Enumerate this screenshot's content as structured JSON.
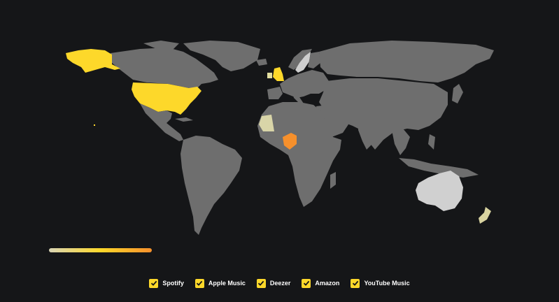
{
  "map": {
    "base_color": "#6e6e6e",
    "background": "#151618",
    "highlights": [
      {
        "country": "United States",
        "color": "#fdd82a"
      },
      {
        "country": "Alaska",
        "color": "#fdd82a"
      },
      {
        "country": "United Kingdom",
        "color": "#fdd82a"
      },
      {
        "country": "Ireland",
        "color": "#e3dea0"
      },
      {
        "country": "Sweden",
        "color": "#cfcfcf"
      },
      {
        "country": "Mauritania",
        "color": "#d9d5a8"
      },
      {
        "country": "Nigeria",
        "color": "#f6902c"
      },
      {
        "country": "Australia",
        "color": "#d0d0d0"
      },
      {
        "country": "New Zealand",
        "color": "#d8d3a0"
      }
    ]
  },
  "scale": {
    "gradient_start": "#d9d5b5",
    "gradient_mid": "#fdd82a",
    "gradient_end": "#f6902c"
  },
  "legend": {
    "check_color": "#fdd82a",
    "check_icon": "checkmark-icon",
    "items": [
      {
        "label": "Spotify",
        "checked": true
      },
      {
        "label": "Apple Music",
        "checked": true
      },
      {
        "label": "Deezer",
        "checked": true
      },
      {
        "label": "Amazon",
        "checked": true
      },
      {
        "label": "YouTube Music",
        "checked": true
      }
    ]
  }
}
